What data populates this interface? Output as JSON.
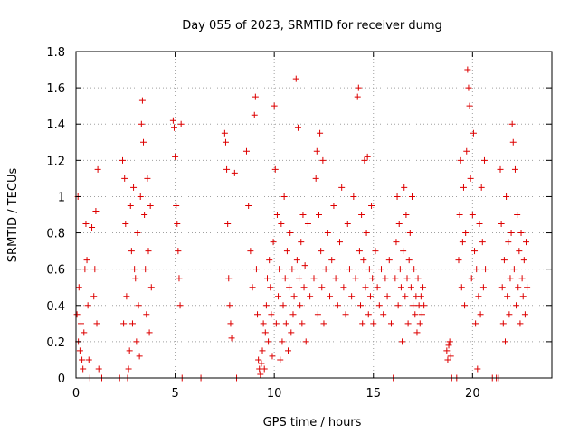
{
  "chart_data": {
    "type": "scatter",
    "title": "Day 055 of 2023, SRMTID for receiver dumg",
    "xlabel": "GPS time / hours",
    "ylabel": "SRMTID / TECUs",
    "xlim": [
      0,
      24
    ],
    "ylim": [
      0,
      1.8
    ],
    "xticks": [
      0,
      5,
      10,
      15,
      20
    ],
    "yticks": [
      0,
      0.2,
      0.4,
      0.6,
      0.8,
      1,
      1.2,
      1.4,
      1.6,
      1.8
    ],
    "xtick_labels": [
      "0",
      "5",
      "10",
      "15",
      "20"
    ],
    "ytick_labels": [
      "0",
      "0.2",
      "0.4",
      "0.6",
      "0.8",
      "1",
      "1.2",
      "1.4",
      "1.6",
      "1.8"
    ],
    "grid": true,
    "marker": "plus",
    "color": "#dd0000",
    "series": [
      {
        "points": [
          [
            0.05,
            0.35
          ],
          [
            0.1,
            1.0
          ],
          [
            0.12,
            0.2
          ],
          [
            0.15,
            0.5
          ],
          [
            0.2,
            0.15
          ],
          [
            0.25,
            0.3
          ],
          [
            0.3,
            0.1
          ],
          [
            0.35,
            0.05
          ],
          [
            0.4,
            0.25
          ],
          [
            0.45,
            0.6
          ],
          [
            0.5,
            0.85
          ],
          [
            0.55,
            0.65
          ],
          [
            0.6,
            0.4
          ],
          [
            0.65,
            0.1
          ],
          [
            0.7,
            0.0
          ],
          [
            0.8,
            0.83
          ],
          [
            0.9,
            0.45
          ],
          [
            0.95,
            0.6
          ],
          [
            1.0,
            0.92
          ],
          [
            1.05,
            0.3
          ],
          [
            1.1,
            1.15
          ],
          [
            1.15,
            0.05
          ],
          [
            1.3,
            0.0
          ],
          [
            2.2,
            0.0
          ],
          [
            2.35,
            1.2
          ],
          [
            2.4,
            0.3
          ],
          [
            2.45,
            1.1
          ],
          [
            2.5,
            0.85
          ],
          [
            2.55,
            0.45
          ],
          [
            2.6,
            0.0
          ],
          [
            2.65,
            0.05
          ],
          [
            2.7,
            0.15
          ],
          [
            2.75,
            0.95
          ],
          [
            2.8,
            0.7
          ],
          [
            2.85,
            0.3
          ],
          [
            2.9,
            1.05
          ],
          [
            2.95,
            0.6
          ],
          [
            3.0,
            0.55
          ],
          [
            3.05,
            0.2
          ],
          [
            3.1,
            0.8
          ],
          [
            3.15,
            0.4
          ],
          [
            3.2,
            0.12
          ],
          [
            3.25,
            1.0
          ],
          [
            3.3,
            1.4
          ],
          [
            3.35,
            1.53
          ],
          [
            3.4,
            1.3
          ],
          [
            3.45,
            0.9
          ],
          [
            3.5,
            0.6
          ],
          [
            3.55,
            0.35
          ],
          [
            3.6,
            1.1
          ],
          [
            3.65,
            0.7
          ],
          [
            3.7,
            0.25
          ],
          [
            3.75,
            0.95
          ],
          [
            3.8,
            0.5
          ],
          [
            4.9,
            1.42
          ],
          [
            4.95,
            1.38
          ],
          [
            5.0,
            1.22
          ],
          [
            5.05,
            0.95
          ],
          [
            5.1,
            0.85
          ],
          [
            5.15,
            0.7
          ],
          [
            5.2,
            0.55
          ],
          [
            5.25,
            0.4
          ],
          [
            5.3,
            1.4
          ],
          [
            5.35,
            0.0
          ],
          [
            6.3,
            0.0
          ],
          [
            7.5,
            1.35
          ],
          [
            7.55,
            1.3
          ],
          [
            7.6,
            1.15
          ],
          [
            7.65,
            0.85
          ],
          [
            7.7,
            0.55
          ],
          [
            7.75,
            0.4
          ],
          [
            7.8,
            0.3
          ],
          [
            7.85,
            0.22
          ],
          [
            8.0,
            1.13
          ],
          [
            8.1,
            0.0
          ],
          [
            8.6,
            1.25
          ],
          [
            8.7,
            0.95
          ],
          [
            8.8,
            0.7
          ],
          [
            8.9,
            0.5
          ],
          [
            9.0,
            1.45
          ],
          [
            9.05,
            1.55
          ],
          [
            9.1,
            0.6
          ],
          [
            9.15,
            0.35
          ],
          [
            9.2,
            0.1
          ],
          [
            9.25,
            0.05
          ],
          [
            9.3,
            0.02
          ],
          [
            9.35,
            0.08
          ],
          [
            9.4,
            0.15
          ],
          [
            9.45,
            0.3
          ],
          [
            9.5,
            0.05
          ],
          [
            9.55,
            0.25
          ],
          [
            9.6,
            0.4
          ],
          [
            9.65,
            0.55
          ],
          [
            9.7,
            0.2
          ],
          [
            9.75,
            0.65
          ],
          [
            9.8,
            0.5
          ],
          [
            9.85,
            0.35
          ],
          [
            9.9,
            0.12
          ],
          [
            9.95,
            0.75
          ],
          [
            10.0,
            1.5
          ],
          [
            10.05,
            1.15
          ],
          [
            10.1,
            0.3
          ],
          [
            10.15,
            0.9
          ],
          [
            10.2,
            0.45
          ],
          [
            10.25,
            0.6
          ],
          [
            10.3,
            0.1
          ],
          [
            10.35,
            0.85
          ],
          [
            10.4,
            0.2
          ],
          [
            10.45,
            0.4
          ],
          [
            10.5,
            1.0
          ],
          [
            10.55,
            0.55
          ],
          [
            10.6,
            0.3
          ],
          [
            10.65,
            0.7
          ],
          [
            10.7,
            0.15
          ],
          [
            10.75,
            0.5
          ],
          [
            10.8,
            0.8
          ],
          [
            10.85,
            0.25
          ],
          [
            10.9,
            0.6
          ],
          [
            10.95,
            0.35
          ],
          [
            11.0,
            0.45
          ],
          [
            11.1,
            1.65
          ],
          [
            11.15,
            0.65
          ],
          [
            11.2,
            1.38
          ],
          [
            11.25,
            0.55
          ],
          [
            11.3,
            0.4
          ],
          [
            11.35,
            0.75
          ],
          [
            11.4,
            0.3
          ],
          [
            11.45,
            0.9
          ],
          [
            11.5,
            0.5
          ],
          [
            11.55,
            0.62
          ],
          [
            11.6,
            0.2
          ],
          [
            11.7,
            0.85
          ],
          [
            11.8,
            0.45
          ],
          [
            12.0,
            0.55
          ],
          [
            12.1,
            1.1
          ],
          [
            12.15,
            1.25
          ],
          [
            12.2,
            0.35
          ],
          [
            12.25,
            0.9
          ],
          [
            12.3,
            1.35
          ],
          [
            12.35,
            0.7
          ],
          [
            12.4,
            0.5
          ],
          [
            12.45,
            1.2
          ],
          [
            12.5,
            0.3
          ],
          [
            12.6,
            0.6
          ],
          [
            12.7,
            0.8
          ],
          [
            12.8,
            0.45
          ],
          [
            12.9,
            0.65
          ],
          [
            13.0,
            0.95
          ],
          [
            13.1,
            0.55
          ],
          [
            13.2,
            0.4
          ],
          [
            13.3,
            0.75
          ],
          [
            13.4,
            1.05
          ],
          [
            13.5,
            0.5
          ],
          [
            13.6,
            0.35
          ],
          [
            13.7,
            0.85
          ],
          [
            13.8,
            0.6
          ],
          [
            13.9,
            0.45
          ],
          [
            14.0,
            1.0
          ],
          [
            14.1,
            0.55
          ],
          [
            14.2,
            1.55
          ],
          [
            14.25,
            1.6
          ],
          [
            14.3,
            0.7
          ],
          [
            14.35,
            0.4
          ],
          [
            14.4,
            0.9
          ],
          [
            14.45,
            0.3
          ],
          [
            14.5,
            0.65
          ],
          [
            14.55,
            1.2
          ],
          [
            14.6,
            0.5
          ],
          [
            14.65,
            0.8
          ],
          [
            14.7,
            1.22
          ],
          [
            14.75,
            0.35
          ],
          [
            14.8,
            0.6
          ],
          [
            14.85,
            0.45
          ],
          [
            14.9,
            0.95
          ],
          [
            14.95,
            0.55
          ],
          [
            15.0,
            0.3
          ],
          [
            15.1,
            0.7
          ],
          [
            15.2,
            0.5
          ],
          [
            15.3,
            0.4
          ],
          [
            15.4,
            0.6
          ],
          [
            15.5,
            0.35
          ],
          [
            15.6,
            0.55
          ],
          [
            15.7,
            0.45
          ],
          [
            15.8,
            0.65
          ],
          [
            15.9,
            0.3
          ],
          [
            16.0,
            0.0
          ],
          [
            16.1,
            0.55
          ],
          [
            16.15,
            0.75
          ],
          [
            16.2,
            1.0
          ],
          [
            16.25,
            0.4
          ],
          [
            16.3,
            0.85
          ],
          [
            16.35,
            0.6
          ],
          [
            16.4,
            0.5
          ],
          [
            16.45,
            0.2
          ],
          [
            16.5,
            0.7
          ],
          [
            16.55,
            1.05
          ],
          [
            16.6,
            0.45
          ],
          [
            16.65,
            0.9
          ],
          [
            16.7,
            0.55
          ],
          [
            16.75,
            0.3
          ],
          [
            16.8,
            0.65
          ],
          [
            16.85,
            0.8
          ],
          [
            16.9,
            0.5
          ],
          [
            16.95,
            1.0
          ],
          [
            17.0,
            0.4
          ],
          [
            17.05,
            0.6
          ],
          [
            17.1,
            0.35
          ],
          [
            17.15,
            0.45
          ],
          [
            17.2,
            0.25
          ],
          [
            17.25,
            0.55
          ],
          [
            17.3,
            0.4
          ],
          [
            17.35,
            0.3
          ],
          [
            17.4,
            0.45
          ],
          [
            17.45,
            0.35
          ],
          [
            17.5,
            0.5
          ],
          [
            17.55,
            0.4
          ],
          [
            18.7,
            0.15
          ],
          [
            18.75,
            0.1
          ],
          [
            18.8,
            0.18
          ],
          [
            18.85,
            0.2
          ],
          [
            18.9,
            0.12
          ],
          [
            18.95,
            0.0
          ],
          [
            19.2,
            0.0
          ],
          [
            19.3,
            0.65
          ],
          [
            19.35,
            0.9
          ],
          [
            19.4,
            1.2
          ],
          [
            19.45,
            0.5
          ],
          [
            19.5,
            0.75
          ],
          [
            19.55,
            1.05
          ],
          [
            19.6,
            0.4
          ],
          [
            19.65,
            0.8
          ],
          [
            19.7,
            1.25
          ],
          [
            19.75,
            1.7
          ],
          [
            19.8,
            1.6
          ],
          [
            19.85,
            1.5
          ],
          [
            19.9,
            1.1
          ],
          [
            19.95,
            0.55
          ],
          [
            20.0,
            0.9
          ],
          [
            20.05,
            1.35
          ],
          [
            20.1,
            0.7
          ],
          [
            20.15,
            0.3
          ],
          [
            20.2,
            0.6
          ],
          [
            20.25,
            0.05
          ],
          [
            20.3,
            0.45
          ],
          [
            20.35,
            0.85
          ],
          [
            20.4,
            0.35
          ],
          [
            20.45,
            1.05
          ],
          [
            20.5,
            0.75
          ],
          [
            20.55,
            0.5
          ],
          [
            20.6,
            1.2
          ],
          [
            20.65,
            0.6
          ],
          [
            21.0,
            0.0
          ],
          [
            21.2,
            0.0
          ],
          [
            21.3,
            0.0
          ],
          [
            21.4,
            1.15
          ],
          [
            21.45,
            0.85
          ],
          [
            21.5,
            0.5
          ],
          [
            21.55,
            0.3
          ],
          [
            21.6,
            0.65
          ],
          [
            21.65,
            0.2
          ],
          [
            21.7,
            1.0
          ],
          [
            21.75,
            0.45
          ],
          [
            21.8,
            0.75
          ],
          [
            21.85,
            0.35
          ],
          [
            21.9,
            0.55
          ],
          [
            21.95,
            0.8
          ],
          [
            22.0,
            1.4
          ],
          [
            22.05,
            1.3
          ],
          [
            22.1,
            0.6
          ],
          [
            22.15,
            1.15
          ],
          [
            22.2,
            0.4
          ],
          [
            22.25,
            0.9
          ],
          [
            22.3,
            0.5
          ],
          [
            22.35,
            0.7
          ],
          [
            22.4,
            0.3
          ],
          [
            22.45,
            0.8
          ],
          [
            22.5,
            0.55
          ],
          [
            22.55,
            0.45
          ],
          [
            22.6,
            0.65
          ],
          [
            22.65,
            0.35
          ],
          [
            22.7,
            0.75
          ],
          [
            22.75,
            0.5
          ]
        ]
      }
    ]
  }
}
